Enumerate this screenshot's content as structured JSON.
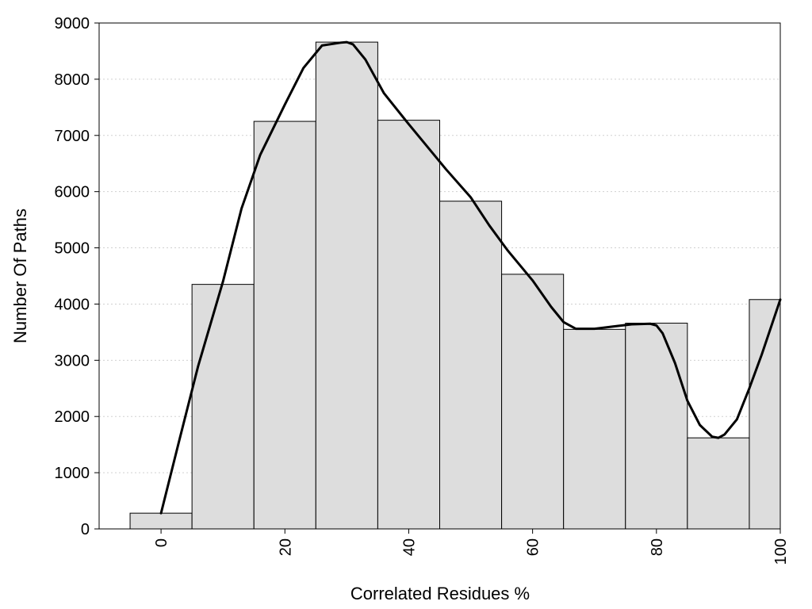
{
  "chart_data": {
    "type": "bar",
    "title": "",
    "xlabel": "Correlated Residues %",
    "ylabel": "Number Of Paths",
    "x": [
      0,
      10,
      20,
      30,
      40,
      50,
      60,
      70,
      80,
      90,
      100
    ],
    "values": [
      280,
      4350,
      7250,
      8660,
      7270,
      5830,
      4530,
      3550,
      3660,
      1620,
      4080
    ],
    "bin_width": 10,
    "xlim": [
      -10,
      100
    ],
    "ylim": [
      0,
      9000
    ],
    "xticks": [
      0,
      20,
      40,
      60,
      80,
      100
    ],
    "yticks": [
      0,
      1000,
      2000,
      3000,
      4000,
      5000,
      6000,
      7000,
      8000,
      9000
    ],
    "grid": true,
    "legend": "none",
    "bar_color": "#dddddd",
    "curve_color": "#000000",
    "curve": {
      "x": [
        0,
        3,
        6,
        10,
        13,
        16,
        20,
        23,
        26,
        29,
        30,
        31,
        33,
        36,
        40,
        43,
        46,
        50,
        53,
        56,
        60,
        63,
        65,
        67,
        70,
        73,
        76,
        79,
        80,
        81,
        83,
        85,
        87,
        89,
        90,
        91,
        93,
        95,
        97,
        100
      ],
      "y": [
        280,
        1600,
        2900,
        4400,
        5700,
        6650,
        7550,
        8200,
        8600,
        8650,
        8660,
        8620,
        8350,
        7750,
        7200,
        6800,
        6400,
        5900,
        5400,
        4950,
        4420,
        3950,
        3680,
        3560,
        3560,
        3600,
        3640,
        3650,
        3620,
        3480,
        2950,
        2280,
        1850,
        1640,
        1620,
        1680,
        1950,
        2500,
        3100,
        4080
      ]
    }
  }
}
